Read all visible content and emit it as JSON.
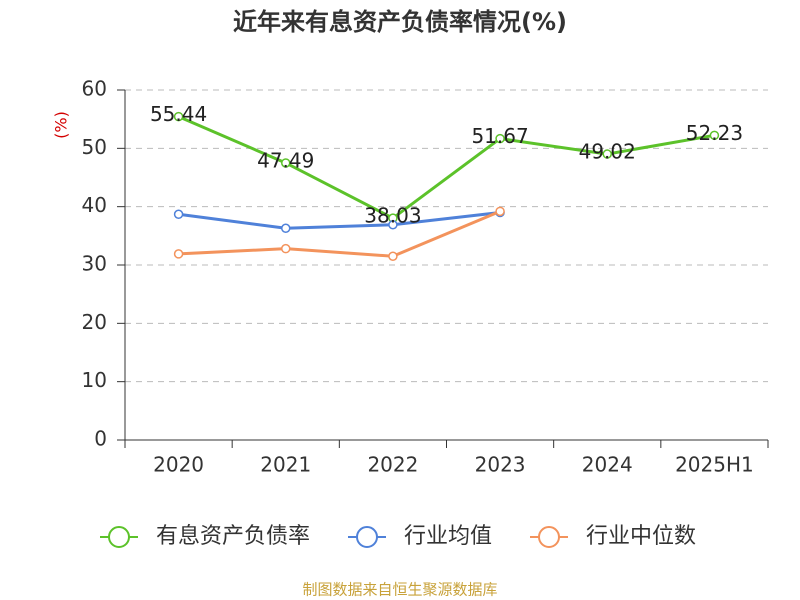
{
  "chart_data": {
    "type": "line",
    "title": "近年来有息资产负债率情况(%)",
    "y_label": "(%)",
    "categories": [
      "2020",
      "2021",
      "2022",
      "2023",
      "2024",
      "2025H1"
    ],
    "series": [
      {
        "name": "有息资产负债率",
        "color": "#5cc22a",
        "values": [
          55.44,
          47.49,
          38.03,
          51.67,
          49.02,
          52.23
        ],
        "show_labels": true
      },
      {
        "name": "行业均值",
        "color": "#4f81d9",
        "values": [
          38.7,
          36.3,
          36.9,
          39.0,
          null,
          null
        ]
      },
      {
        "name": "行业中位数",
        "color": "#f3935c",
        "values": [
          31.9,
          32.8,
          31.5,
          39.2,
          null,
          null
        ]
      }
    ],
    "ylim": [
      0,
      60
    ],
    "yticks": [
      0,
      10,
      20,
      30,
      40,
      50,
      60
    ],
    "grid": true,
    "source": "制图数据来自恒生聚源数据库"
  }
}
